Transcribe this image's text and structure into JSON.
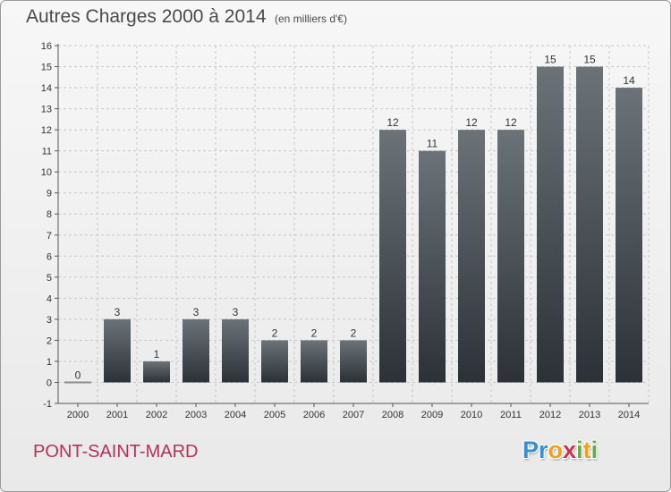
{
  "header": {
    "title": "Autres Charges 2000 à 2014",
    "subtitle": "(en milliers d'€)"
  },
  "footer": {
    "commune": "PONT-SAINT-MARD",
    "logo": {
      "letters": [
        "P",
        "r",
        "o",
        "x",
        "i",
        "t",
        "i"
      ],
      "colors": [
        "#3a8fd0",
        "#3a8fd0",
        "#f0a020",
        "#d03050",
        "#60b040",
        "#f0a020",
        "#60b040"
      ]
    }
  },
  "colors": {
    "bar_light": "#6c7378",
    "bar_dark": "#2b3136",
    "grid": "#c8c8c8",
    "axis": "#555555",
    "text": "#4a4a4a",
    "commune": "#b4325a"
  },
  "chart_data": {
    "type": "bar",
    "title": "Autres Charges 2000 à 2014",
    "subtitle": "(en milliers d'€)",
    "xlabel": "",
    "ylabel": "",
    "categories": [
      "2000",
      "2001",
      "2002",
      "2003",
      "2004",
      "2005",
      "2006",
      "2007",
      "2008",
      "2009",
      "2010",
      "2011",
      "2012",
      "2013",
      "2014"
    ],
    "values": [
      0,
      3,
      1,
      3,
      3,
      2,
      2,
      2,
      12,
      11,
      12,
      12,
      15,
      15,
      14
    ],
    "ylim": [
      -1,
      16
    ],
    "yticks": [
      -1,
      0,
      1,
      2,
      3,
      4,
      5,
      6,
      7,
      8,
      9,
      10,
      11,
      12,
      13,
      14,
      15,
      16
    ],
    "grid": "horizontal dashed",
    "legend": "none"
  }
}
